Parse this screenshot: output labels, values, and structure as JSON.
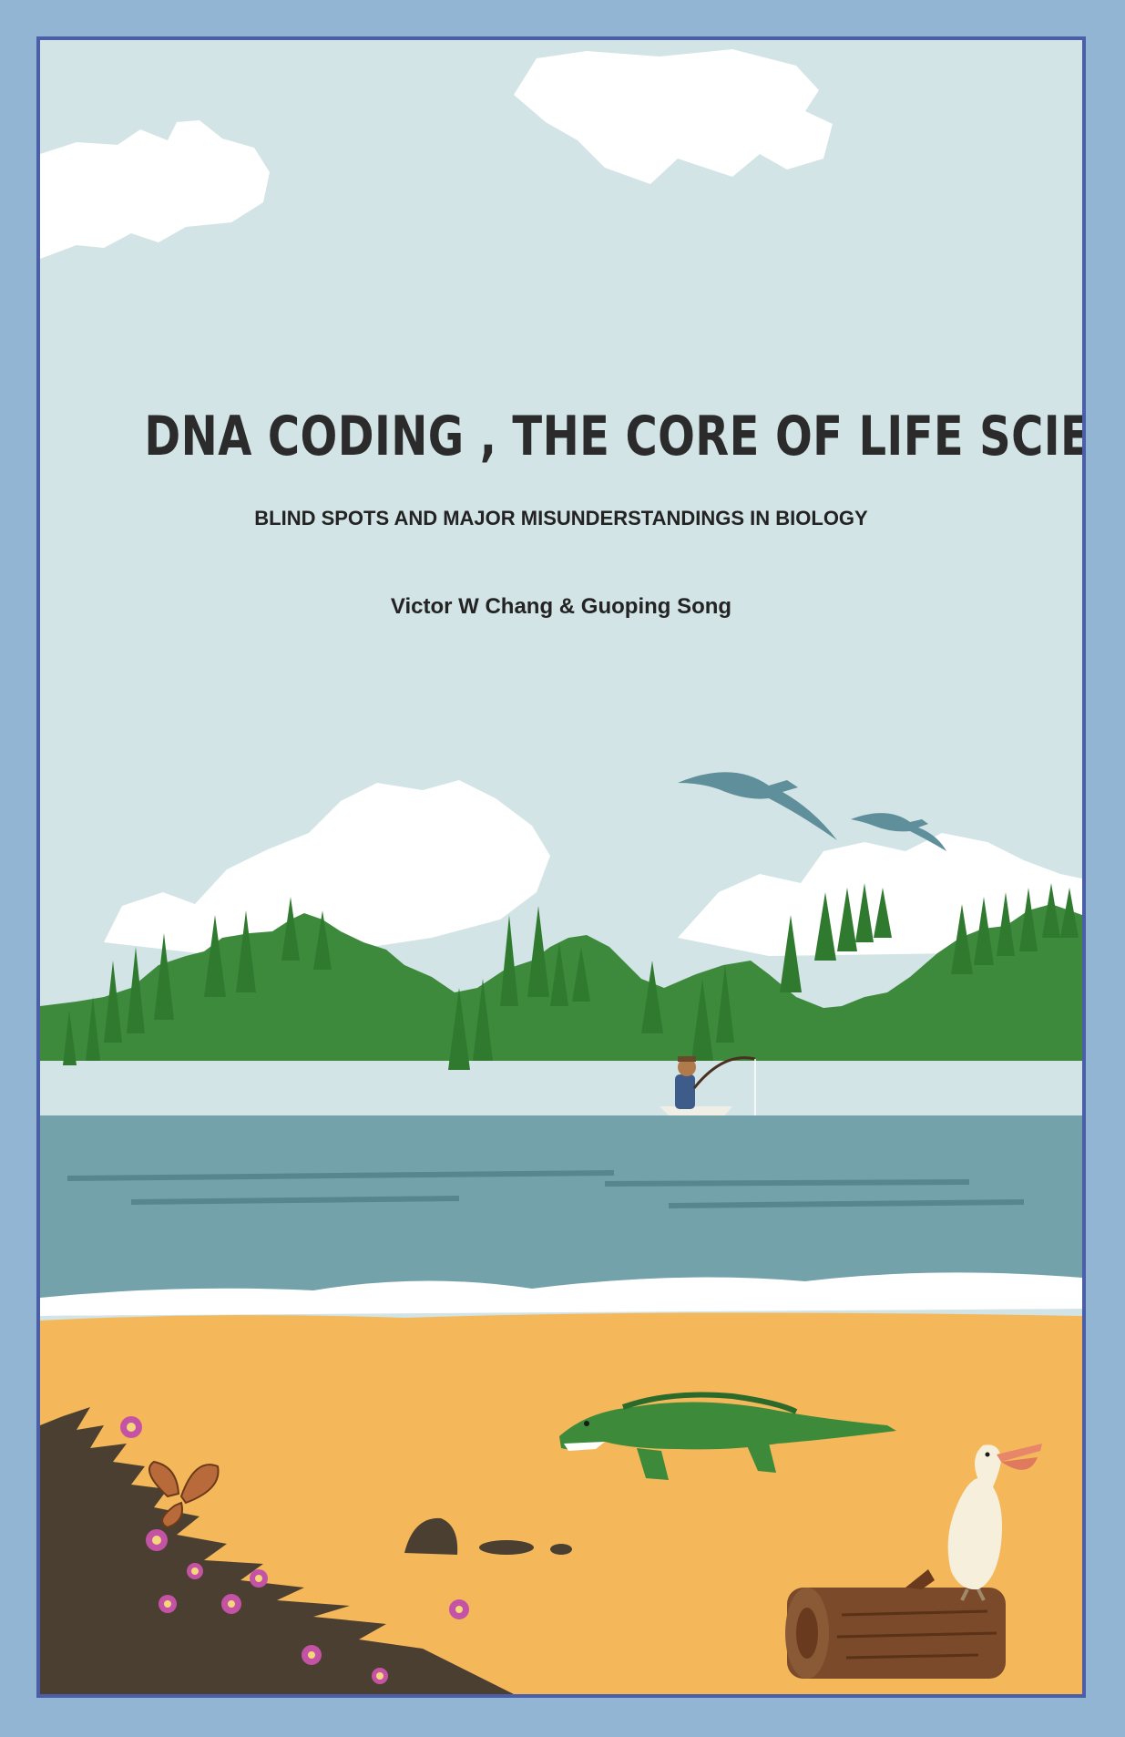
{
  "cover": {
    "title": "DNA CODING , THE CORE OF LIFE SCIENCES",
    "subtitle": "BLIND SPOTS AND MAJOR MISUNDERSTANDINGS IN BIOLOGY",
    "authors": "Victor W Chang & Guoping Song"
  },
  "colors": {
    "page_background": "#93b5d4",
    "frame_border": "#4a5fa8",
    "sky": "#d2e4e6",
    "cloud": "#ffffff",
    "forest": "#3d8a3c",
    "water": "#74a2ab",
    "sand": "#f4b85a",
    "rock": "#4a3f30",
    "crocodile": "#3c8a3a",
    "pelican": "#f5efdc",
    "log": "#7a4a2a",
    "flower": "#c453a6"
  },
  "illustration": {
    "elements": [
      "cloud-icon",
      "seagull-icon",
      "pine-tree-icon",
      "fisherman-boat-icon",
      "crocodile-icon",
      "butterfly-icon",
      "flower-icon",
      "pelican-icon",
      "log-icon",
      "rock-icon"
    ]
  }
}
